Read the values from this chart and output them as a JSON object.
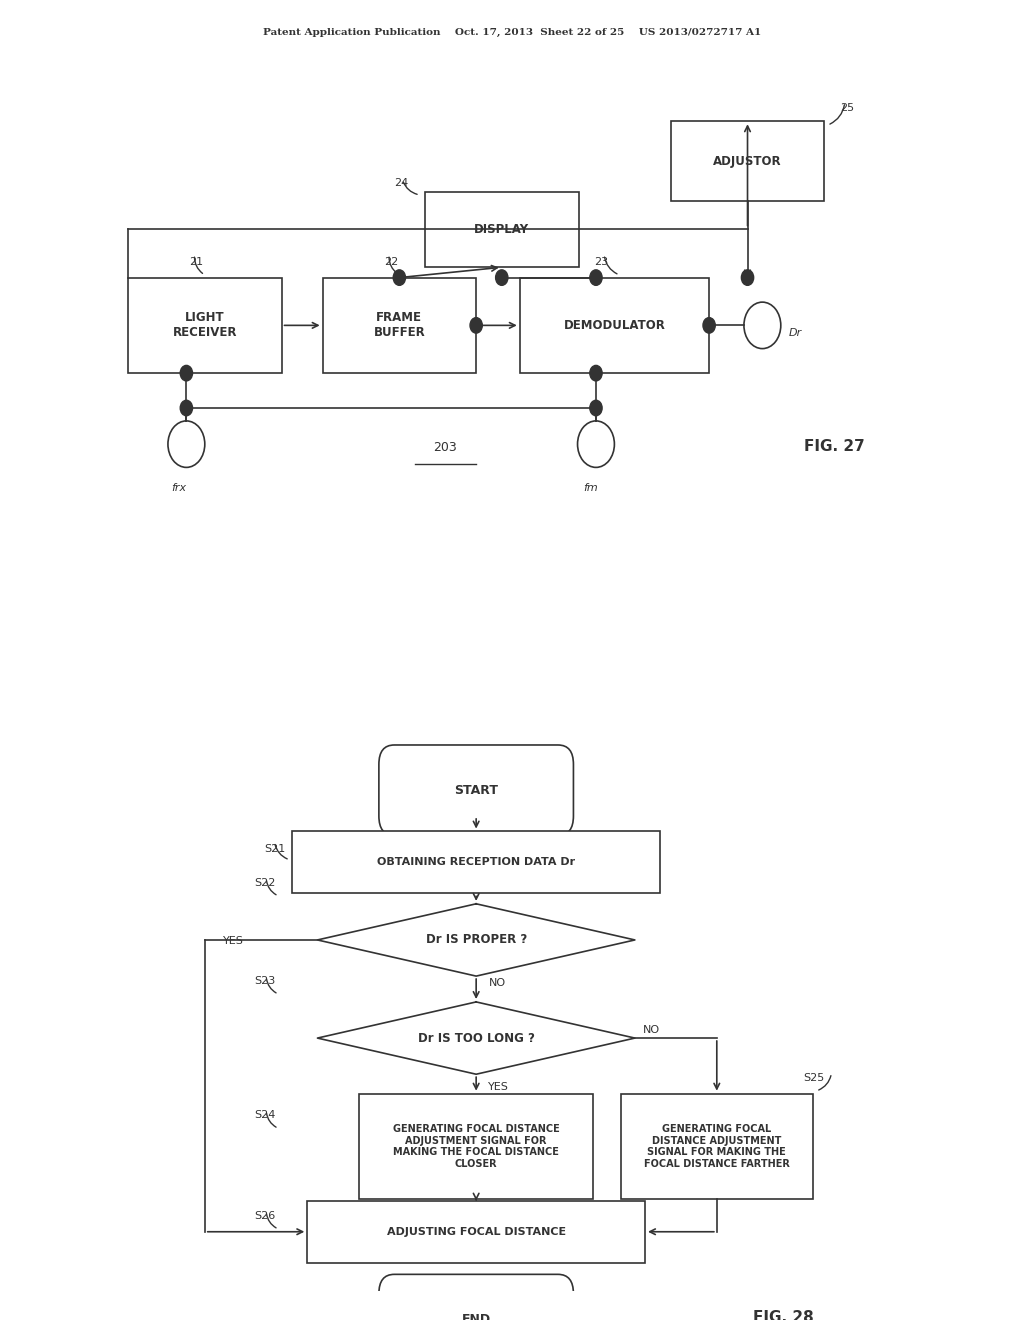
{
  "bg_color": "#ffffff",
  "line_color": "#333333",
  "text_color": "#333333",
  "header_text": "Patent Application Publication    Oct. 17, 2013  Sheet 22 of 25    US 2013/0272717 A1",
  "fig27_label": "FIG. 27",
  "fig28_label": "FIG. 28",
  "diagram203_label": "203"
}
